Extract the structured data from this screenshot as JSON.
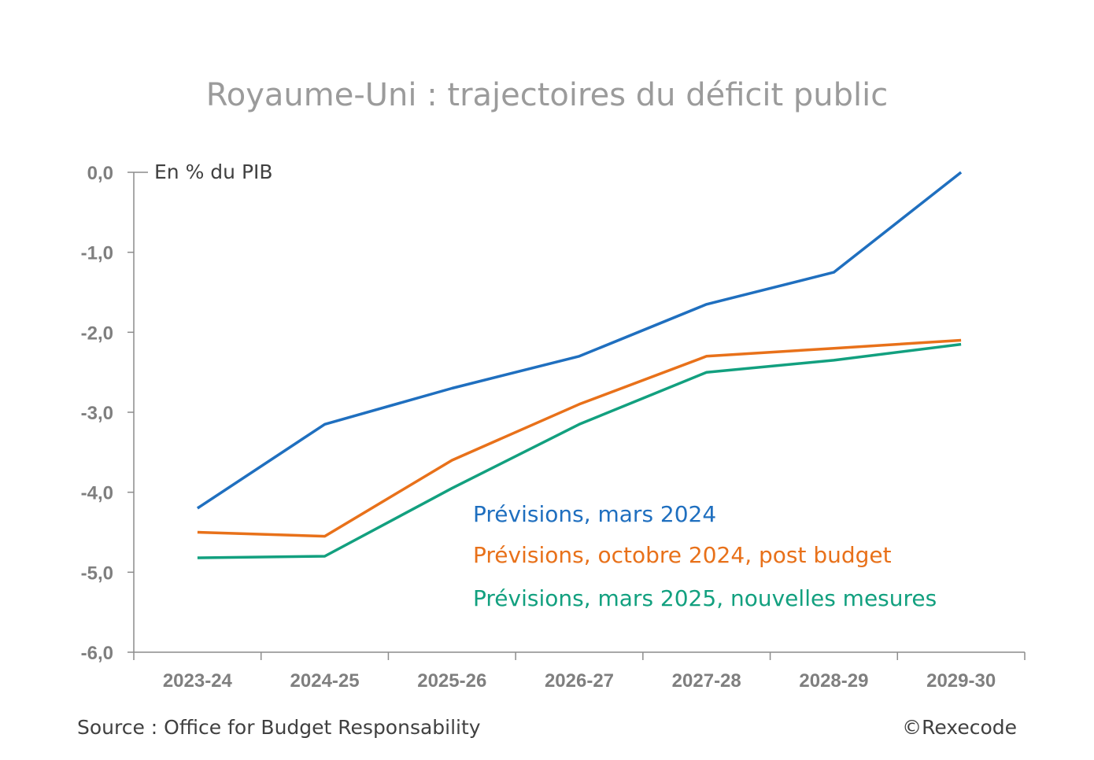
{
  "chart_data": {
    "type": "line",
    "title": "Royaume-Uni : trajectoires du déficit public",
    "unit_label": "En % du PIB",
    "categories": [
      "2023-24",
      "2024-25",
      "2025-26",
      "2026-27",
      "2027-28",
      "2028-29",
      "2029-30"
    ],
    "ylim": [
      -6.0,
      0.0
    ],
    "yticks": [
      {
        "value": 0.0,
        "label": "0,0"
      },
      {
        "value": -1.0,
        "label": "-1,0"
      },
      {
        "value": -2.0,
        "label": "-2,0"
      },
      {
        "value": -3.0,
        "label": "-3,0"
      },
      {
        "value": -4.0,
        "label": "-4,0"
      },
      {
        "value": -5.0,
        "label": "-5,0"
      },
      {
        "value": -6.0,
        "label": "-6,0"
      }
    ],
    "series": [
      {
        "name": "Prévisions, mars 2024",
        "color": "#1f6fbf",
        "values": [
          -4.2,
          -3.15,
          -2.7,
          -2.3,
          -1.65,
          -1.25,
          0.0
        ]
      },
      {
        "name": "Prévisions, octobre 2024, post budget",
        "color": "#e8711a",
        "values": [
          -4.5,
          -4.55,
          -3.6,
          -2.9,
          -2.3,
          -2.2,
          -2.1
        ]
      },
      {
        "name": "Prévisions, mars 2025, nouvelles mesures",
        "color": "#12a07f",
        "values": [
          -4.82,
          -4.8,
          -3.95,
          -3.15,
          -2.5,
          -2.35,
          -2.15
        ]
      }
    ],
    "grid": false,
    "legend_position": "bottom-right"
  },
  "footer": {
    "source": "Source : Office for Budget Responsability",
    "copyright": "©Rexecode"
  }
}
